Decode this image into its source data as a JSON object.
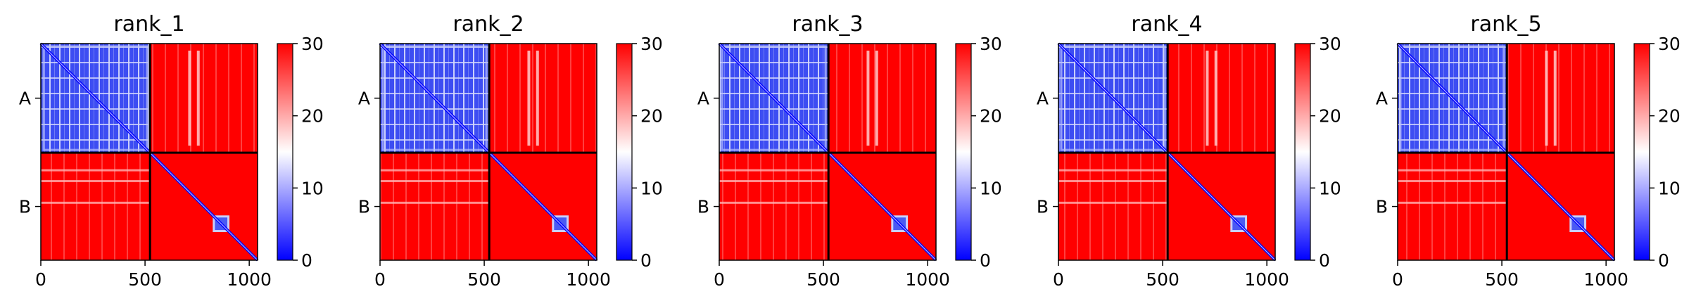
{
  "chart_data": [
    {
      "type": "heatmap",
      "title": "rank_1",
      "xticks": [
        0,
        500,
        1000
      ],
      "row_labels": [
        "A",
        "B"
      ],
      "chain_lengths": {
        "A": 524,
        "B": 516
      },
      "axis_range": [
        0,
        1040
      ],
      "colorbar": {
        "min": 0,
        "max": 30,
        "ticks": [
          0,
          10,
          20,
          30
        ],
        "colors": [
          "#0000ff",
          "#ffffff",
          "#ff0000"
        ]
      },
      "intra_A_error": "low",
      "intra_B_error": "high",
      "inter_chain_error": "high"
    },
    {
      "type": "heatmap",
      "title": "rank_2",
      "xticks": [
        0,
        500,
        1000
      ],
      "row_labels": [
        "A",
        "B"
      ],
      "chain_lengths": {
        "A": 524,
        "B": 516
      },
      "axis_range": [
        0,
        1040
      ],
      "colorbar": {
        "min": 0,
        "max": 30,
        "ticks": [
          0,
          10,
          20,
          30
        ],
        "colors": [
          "#0000ff",
          "#ffffff",
          "#ff0000"
        ]
      },
      "intra_A_error": "low",
      "intra_B_error": "high",
      "inter_chain_error": "high"
    },
    {
      "type": "heatmap",
      "title": "rank_3",
      "xticks": [
        0,
        500,
        1000
      ],
      "row_labels": [
        "A",
        "B"
      ],
      "chain_lengths": {
        "A": 524,
        "B": 516
      },
      "axis_range": [
        0,
        1040
      ],
      "colorbar": {
        "min": 0,
        "max": 30,
        "ticks": [
          0,
          10,
          20,
          30
        ],
        "colors": [
          "#0000ff",
          "#ffffff",
          "#ff0000"
        ]
      },
      "intra_A_error": "low",
      "intra_B_error": "high",
      "inter_chain_error": "high"
    },
    {
      "type": "heatmap",
      "title": "rank_4",
      "xticks": [
        0,
        500,
        1000
      ],
      "row_labels": [
        "A",
        "B"
      ],
      "chain_lengths": {
        "A": 524,
        "B": 516
      },
      "axis_range": [
        0,
        1040
      ],
      "colorbar": {
        "min": 0,
        "max": 30,
        "ticks": [
          0,
          10,
          20,
          30
        ],
        "colors": [
          "#0000ff",
          "#ffffff",
          "#ff0000"
        ]
      },
      "intra_A_error": "low",
      "intra_B_error": "high",
      "inter_chain_error": "high"
    },
    {
      "type": "heatmap",
      "title": "rank_5",
      "xticks": [
        0,
        500,
        1000
      ],
      "row_labels": [
        "A",
        "B"
      ],
      "chain_lengths": {
        "A": 524,
        "B": 516
      },
      "axis_range": [
        0,
        1040
      ],
      "colorbar": {
        "min": 0,
        "max": 30,
        "ticks": [
          0,
          10,
          20,
          30
        ],
        "colors": [
          "#0000ff",
          "#ffffff",
          "#ff0000"
        ]
      },
      "intra_A_error": "low",
      "intra_B_error": "high",
      "inter_chain_error": "high"
    }
  ]
}
